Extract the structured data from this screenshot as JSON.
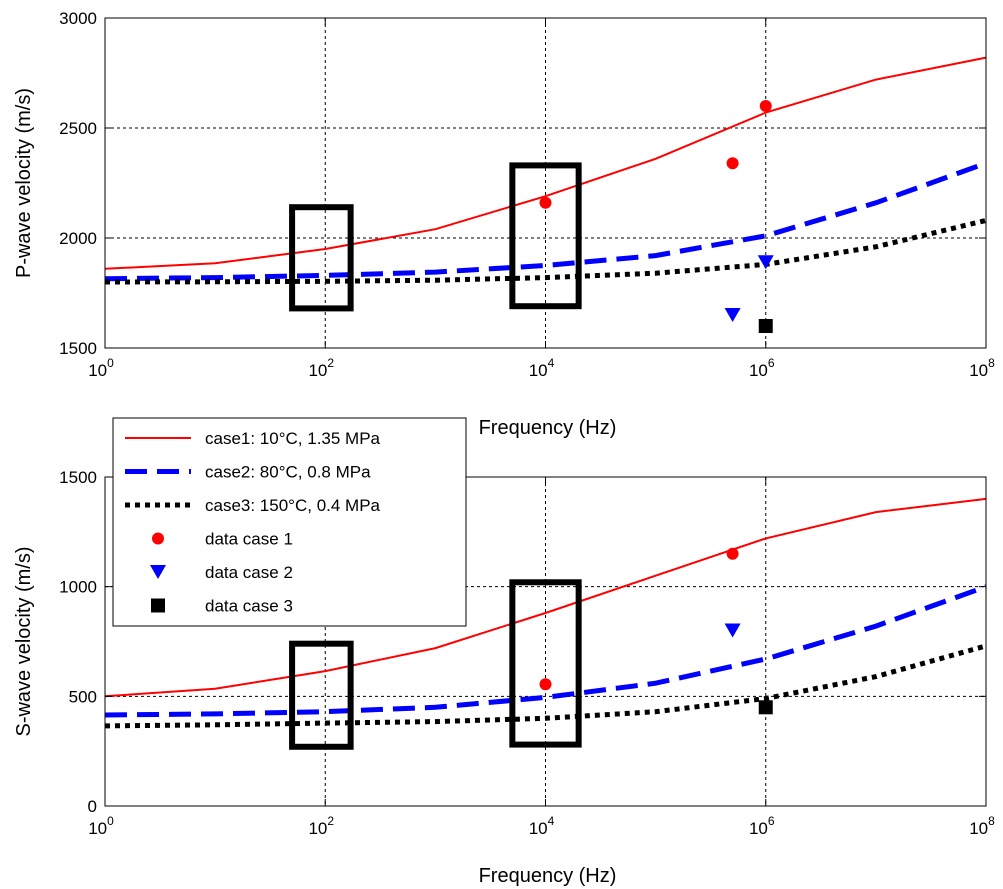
{
  "chart_data": [
    {
      "type": "line",
      "title": "",
      "xlabel": "Frequency (Hz)",
      "ylabel": "P-wave velocity (m/s)",
      "xscale": "log",
      "xlim": [
        1,
        100000000
      ],
      "ylim": [
        1500,
        3000
      ],
      "yticks": [
        1500,
        2000,
        2500,
        3000
      ],
      "xticks": [
        1,
        100,
        10000,
        1000000,
        100000000
      ],
      "xtick_labels": [
        {
          "base": "10",
          "exp": "0"
        },
        {
          "base": "10",
          "exp": "2"
        },
        {
          "base": "10",
          "exp": "4"
        },
        {
          "base": "10",
          "exp": "6"
        },
        {
          "base": "10",
          "exp": "8"
        }
      ],
      "grid": true,
      "series": [
        {
          "name": "case1: 10°C, 1.35 MPa",
          "style": "solid",
          "color": "#ff0000",
          "x": [
            1,
            10,
            100,
            1000,
            10000,
            100000,
            1000000,
            10000000,
            100000000
          ],
          "y": [
            1860,
            1885,
            1950,
            2040,
            2190,
            2360,
            2570,
            2720,
            2820
          ]
        },
        {
          "name": "case2: 80°C, 0.8 MPa",
          "style": "dashed",
          "color": "#0000ff",
          "x": [
            1,
            10,
            100,
            1000,
            10000,
            100000,
            1000000,
            10000000,
            100000000
          ],
          "y": [
            1815,
            1820,
            1830,
            1845,
            1875,
            1920,
            2010,
            2160,
            2340
          ]
        },
        {
          "name": "case3: 150°C, 0.4 MPa",
          "style": "dotted",
          "color": "#000000",
          "x": [
            1,
            10,
            100,
            1000,
            10000,
            100000,
            1000000,
            10000000,
            100000000
          ],
          "y": [
            1800,
            1801,
            1803,
            1808,
            1820,
            1840,
            1880,
            1960,
            2080
          ]
        }
      ],
      "markers": [
        {
          "name": "data case 1",
          "shape": "circle",
          "color": "#ff0000",
          "points": [
            [
              10000,
              2160
            ],
            [
              500000,
              2340
            ],
            [
              1000000,
              2600
            ]
          ]
        },
        {
          "name": "data case 2",
          "shape": "triangle-down",
          "color": "#0000ff",
          "points": [
            [
              500000,
              1650
            ],
            [
              1000000,
              1890
            ]
          ]
        },
        {
          "name": "data case 3",
          "shape": "square",
          "color": "#000000",
          "points": [
            [
              1000000,
              1600
            ]
          ]
        }
      ],
      "highlight_boxes": [
        {
          "x": [
            50,
            170
          ],
          "y": [
            1680,
            2140
          ]
        },
        {
          "x": [
            5000,
            20000
          ],
          "y": [
            1690,
            2330
          ]
        }
      ]
    },
    {
      "type": "line",
      "title": "",
      "xlabel": "Frequency (Hz)",
      "ylabel": "S-wave velocity (m/s)",
      "xscale": "log",
      "xlim": [
        1,
        100000000
      ],
      "ylim": [
        0,
        1500
      ],
      "yticks": [
        0,
        500,
        1000,
        1500
      ],
      "xticks": [
        1,
        100,
        10000,
        1000000,
        100000000
      ],
      "xtick_labels": [
        {
          "base": "10",
          "exp": "0"
        },
        {
          "base": "10",
          "exp": "2"
        },
        {
          "base": "10",
          "exp": "4"
        },
        {
          "base": "10",
          "exp": "6"
        },
        {
          "base": "10",
          "exp": "8"
        }
      ],
      "grid": true,
      "series": [
        {
          "name": "case1: 10°C, 1.35 MPa",
          "style": "solid",
          "color": "#ff0000",
          "x": [
            1,
            10,
            100,
            1000,
            10000,
            100000,
            1000000,
            10000000,
            100000000
          ],
          "y": [
            500,
            535,
            615,
            720,
            880,
            1050,
            1220,
            1340,
            1400
          ]
        },
        {
          "name": "case2: 80°C, 0.8 MPa",
          "style": "dashed",
          "color": "#0000ff",
          "x": [
            1,
            10,
            100,
            1000,
            10000,
            100000,
            1000000,
            10000000,
            100000000
          ],
          "y": [
            415,
            420,
            430,
            450,
            495,
            560,
            670,
            820,
            1000
          ]
        },
        {
          "name": "case3: 150°C, 0.4 MPa",
          "style": "dotted",
          "color": "#000000",
          "x": [
            1,
            10,
            100,
            1000,
            10000,
            100000,
            1000000,
            10000000,
            100000000
          ],
          "y": [
            365,
            370,
            378,
            385,
            400,
            430,
            490,
            590,
            730
          ]
        }
      ],
      "markers": [
        {
          "name": "data case 1",
          "shape": "circle",
          "color": "#ff0000",
          "points": [
            [
              10000,
              555
            ],
            [
              500000,
              1150
            ]
          ]
        },
        {
          "name": "data case 2",
          "shape": "triangle-down",
          "color": "#0000ff",
          "points": [
            [
              500000,
              800
            ]
          ]
        },
        {
          "name": "data case 3",
          "shape": "square",
          "color": "#000000",
          "points": [
            [
              1000000,
              450
            ]
          ]
        }
      ],
      "highlight_boxes": [
        {
          "x": [
            50,
            170
          ],
          "y": [
            270,
            740
          ]
        },
        {
          "x": [
            5000,
            20000
          ],
          "y": [
            280,
            1020
          ]
        }
      ]
    }
  ],
  "legend": {
    "placement": "top-left of lower panel",
    "entries": [
      {
        "label": "case1: 10°C, 1.35 MPa",
        "kind": "line",
        "style": "solid",
        "color": "#ff0000"
      },
      {
        "label": "case2: 80°C, 0.8 MPa",
        "kind": "line",
        "style": "dashed",
        "color": "#0000ff"
      },
      {
        "label": "case3: 150°C, 0.4 MPa",
        "kind": "line",
        "style": "dotted",
        "color": "#000000"
      },
      {
        "label": "data case 1",
        "kind": "marker",
        "shape": "circle",
        "color": "#ff0000"
      },
      {
        "label": "data case 2",
        "kind": "marker",
        "shape": "triangle-down",
        "color": "#0000ff"
      },
      {
        "label": "data case 3",
        "kind": "marker",
        "shape": "square",
        "color": "#000000"
      }
    ]
  }
}
